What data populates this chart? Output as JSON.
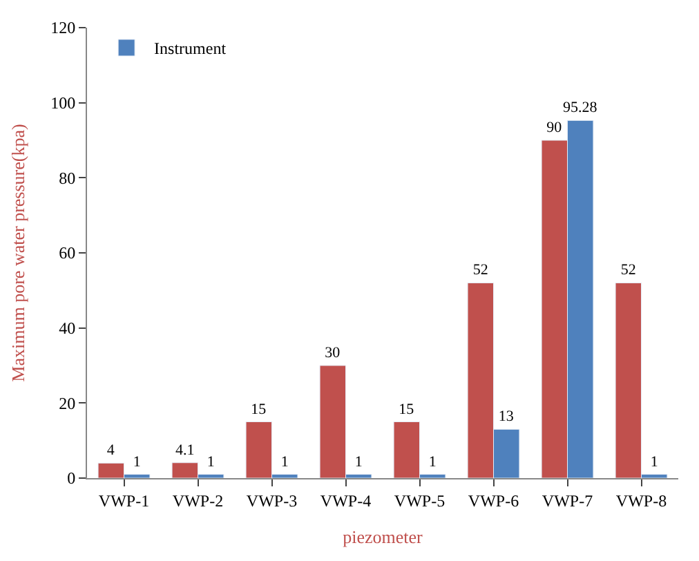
{
  "chart_data": {
    "type": "bar",
    "xlabel": "piezometer",
    "ylabel": "Maximum pore water pressure(kpa)",
    "categories": [
      "VWP-1",
      "VWP-2",
      "VWP-3",
      "VWP-4",
      "VWP-5",
      "VWP-6",
      "VWP-7",
      "VWP-8"
    ],
    "series": [
      {
        "color": "#c0504d",
        "values": [
          4,
          4.1,
          15,
          30,
          15,
          52,
          90,
          52
        ]
      },
      {
        "name": "Instrument",
        "color": "#4f81bd",
        "values": [
          1,
          1,
          1,
          1,
          1,
          13,
          95.28,
          1
        ]
      }
    ],
    "ylim": [
      0,
      120
    ],
    "yticks": [
      0,
      20,
      40,
      60,
      80,
      100,
      120
    ],
    "data_labels": true,
    "legend": "top left"
  }
}
